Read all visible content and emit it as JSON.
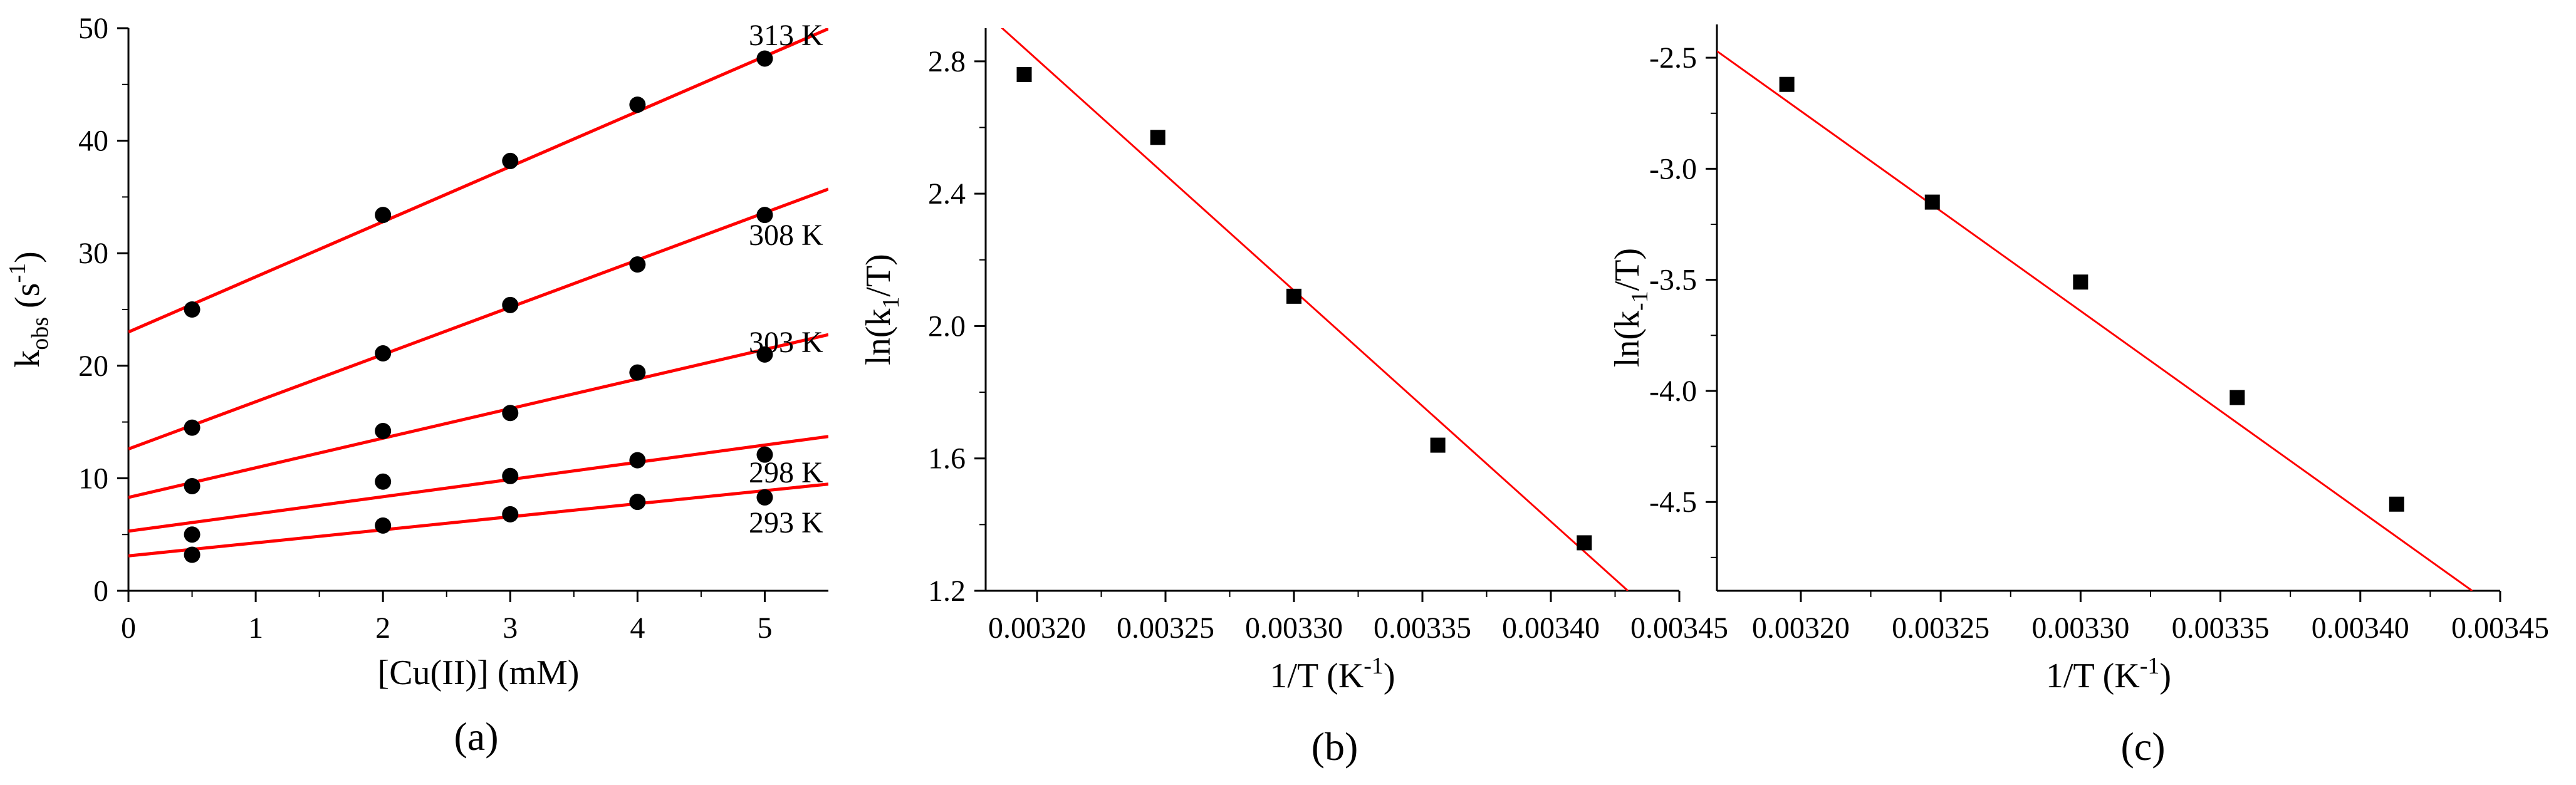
{
  "colors": {
    "axis": "#000000",
    "fit_line": "#ff0000",
    "marker": "#000000",
    "background": "#ffffff"
  },
  "chart_data": [
    {
      "type": "scatter",
      "panel_label": "(a)",
      "xlabel_main": "[Cu(II)] (mM)",
      "ylabel_main": "k",
      "ylabel_sub": "obs",
      "ylabel_unit_pre": " (s",
      "ylabel_unit_sup": "-1",
      "ylabel_unit_post": ")",
      "xlim": [
        0,
        5.5
      ],
      "ylim": [
        0,
        50
      ],
      "xticks": [
        0,
        1,
        2,
        3,
        4,
        5
      ],
      "yticks": [
        0,
        10,
        20,
        30,
        40,
        50
      ],
      "marker": "circle",
      "grid": false,
      "series": [
        {
          "name": "313 K",
          "x": [
            0.5,
            2,
            3,
            4,
            5
          ],
          "y": [
            25.0,
            33.4,
            38.2,
            43.2,
            47.3
          ],
          "fit": {
            "intercept": 23.0,
            "slope": 4.9
          }
        },
        {
          "name": "308 K",
          "x": [
            0.5,
            2,
            3,
            4,
            5
          ],
          "y": [
            14.5,
            21.1,
            25.4,
            29.0,
            33.4
          ],
          "fit": {
            "intercept": 12.6,
            "slope": 4.2
          }
        },
        {
          "name": "303 K",
          "x": [
            0.5,
            2,
            3,
            4,
            5
          ],
          "y": [
            9.3,
            14.2,
            15.8,
            19.4,
            21.0
          ],
          "fit": {
            "intercept": 8.3,
            "slope": 2.63
          }
        },
        {
          "name": "298 K",
          "x": [
            0.5,
            2,
            3,
            4,
            5
          ],
          "y": [
            5.0,
            9.7,
            10.2,
            11.6,
            12.1
          ],
          "fit": {
            "intercept": 5.3,
            "slope": 1.53
          }
        },
        {
          "name": "293 K",
          "x": [
            0.5,
            2,
            3,
            4,
            5
          ],
          "y": [
            3.2,
            5.8,
            6.8,
            7.9,
            8.3
          ],
          "fit": {
            "intercept": 3.1,
            "slope": 1.16
          }
        }
      ]
    },
    {
      "type": "scatter",
      "panel_label": "(b)",
      "xlabel_main": "1/T (K",
      "xlabel_sup": "-1",
      "xlabel_post": ")",
      "ylabel_main": "ln(k",
      "ylabel_sub": "1",
      "ylabel_post": "/T)",
      "xlim": [
        0.00318,
        0.00345
      ],
      "ylim": [
        1.2,
        2.9
      ],
      "xticks": [
        "0.00320",
        "0.00325",
        "0.00330",
        "0.00335",
        "0.00340",
        "0.00345"
      ],
      "yticks": [
        "1.2",
        "1.6",
        "2.0",
        "2.4",
        "2.8"
      ],
      "marker": "square",
      "grid": false,
      "series": [
        {
          "x": [
            0.003195,
            0.003247,
            0.0033,
            0.003356,
            0.003413
          ],
          "y": [
            2.76,
            2.57,
            2.09,
            1.64,
            1.345
          ],
          "fit": {
            "x1": 0.003185,
            "y1": 2.91,
            "x2": 0.00343,
            "y2": 1.2
          }
        }
      ]
    },
    {
      "type": "scatter",
      "panel_label": "(c)",
      "xlabel_main": "1/T (K",
      "xlabel_sup": "-1",
      "xlabel_post": ")",
      "ylabel_main": "ln(k",
      "ylabel_sub": "-1",
      "ylabel_post": "/T)",
      "xlim": [
        0.00317,
        0.00345
      ],
      "ylim": [
        -4.9,
        -2.35
      ],
      "xticks": [
        "0.00320",
        "0.00325",
        "0.00330",
        "0.00335",
        "0.00340",
        "0.00345"
      ],
      "yticks": [
        "-2.5",
        "-3.0",
        "-3.5",
        "-4.0",
        "-4.5"
      ],
      "marker": "square",
      "grid": false,
      "series": [
        {
          "x": [
            0.003195,
            0.003247,
            0.0033,
            0.003356,
            0.003413
          ],
          "y": [
            -2.62,
            -3.15,
            -3.51,
            -4.03,
            -4.51
          ],
          "fit": {
            "x1": 0.00317,
            "y1": -2.47,
            "x2": 0.00344,
            "y2": -4.9
          }
        }
      ]
    }
  ]
}
